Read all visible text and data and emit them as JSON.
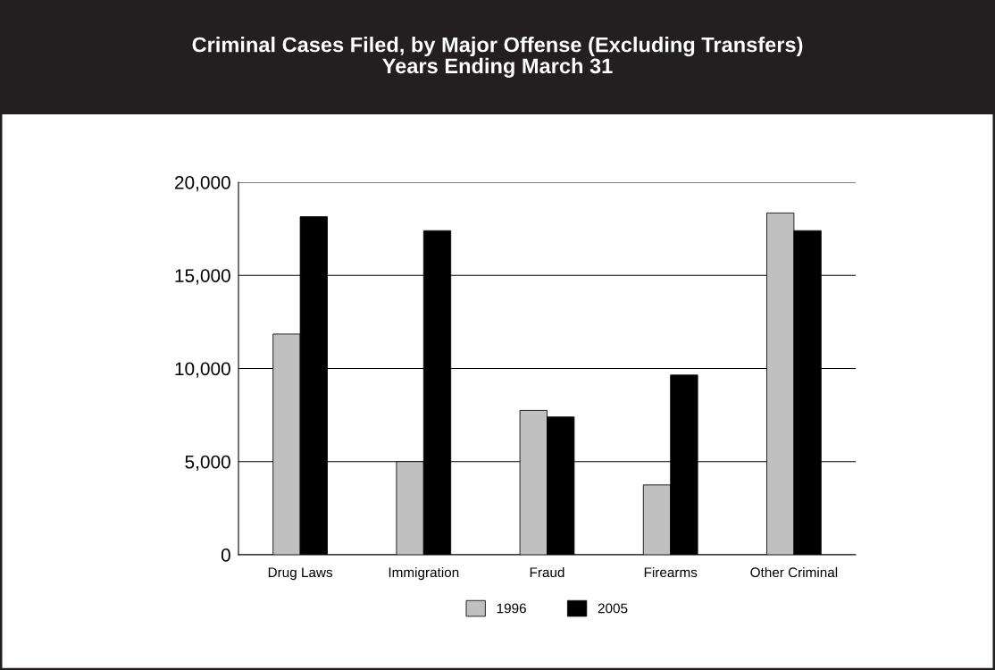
{
  "chart_data": {
    "type": "bar",
    "title": "Criminal Cases Filed, by Major Offense (Excluding Transfers)\nYears Ending March 31",
    "categories": [
      "Drug Laws",
      "Immigration",
      "Fraud",
      "Firearms",
      "Other Criminal"
    ],
    "series": [
      {
        "name": "1996",
        "color": "#c0c0c0",
        "values": [
          11850,
          5000,
          7750,
          3750,
          18350
        ]
      },
      {
        "name": "2005",
        "color": "#000000",
        "values": [
          18150,
          17400,
          7400,
          9650,
          17400
        ]
      }
    ],
    "ylim": [
      0,
      20000
    ],
    "yticks": [
      {
        "value": 0,
        "label": "0"
      },
      {
        "value": 5000,
        "label": "5,000"
      },
      {
        "value": 10000,
        "label": "10,000"
      },
      {
        "value": 15000,
        "label": "15,000"
      },
      {
        "value": 20000,
        "label": "20,000"
      }
    ],
    "grid": "y",
    "legend": "bottom"
  }
}
